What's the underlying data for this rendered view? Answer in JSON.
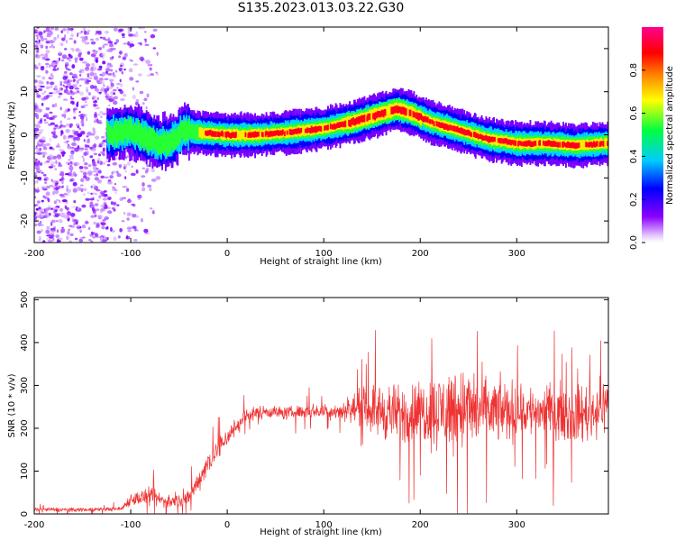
{
  "figure": {
    "title": "S135.2023.013.03.22.G30"
  },
  "chart_data": [
    {
      "type": "heatmap",
      "title": "S135.2023.013.03.22.G30",
      "xlabel": "Height of straight line (km)",
      "ylabel": "Frequency (Hz)",
      "xlim": [
        -200,
        395
      ],
      "ylim": [
        -25,
        25
      ],
      "x_ticks": [
        -200,
        -100,
        0,
        100,
        200,
        300
      ],
      "y_ticks": [
        -20,
        -10,
        0,
        10,
        20
      ],
      "grid": false,
      "colorbar": {
        "label": "Normalized spectral amplitude",
        "range": [
          0,
          1
        ],
        "ticks": [
          "0.0",
          "0.2",
          "0.4",
          "0.6",
          "0.8"
        ],
        "colors": [
          "#ffffff",
          "#7b00ff",
          "#0000ff",
          "#00d0ff",
          "#00ff00",
          "#ffff00",
          "#ff8000",
          "#ff0000",
          "#ff00a0"
        ]
      },
      "ridge": {
        "description_of_peak_frequency_vs_height": "peak frequency line",
        "x": [
          -120,
          -100,
          -80,
          -70,
          -55,
          -45,
          -30,
          0,
          30,
          60,
          100,
          130,
          160,
          175,
          190,
          210,
          240,
          270,
          300,
          330,
          360,
          390
        ],
        "y": [
          0,
          1,
          -1,
          -2,
          -1,
          1,
          0.5,
          0,
          0,
          0.5,
          1.5,
          3,
          5,
          6,
          5,
          3,
          1,
          -1,
          -2,
          -2,
          -2.5,
          -2
        ]
      }
    },
    {
      "type": "line",
      "xlabel": "Height of straight line (km)",
      "ylabel": "SNR (10 * v/v)",
      "xlim": [
        -200,
        395
      ],
      "ylim": [
        0,
        505
      ],
      "x_ticks": [
        -200,
        -100,
        0,
        100,
        200,
        300
      ],
      "y_ticks": [
        0,
        100,
        200,
        300,
        400,
        500
      ],
      "grid": false,
      "color": "#ee3333",
      "envelope": {
        "x": [
          -200,
          -150,
          -110,
          -100,
          -80,
          -60,
          -40,
          -20,
          0,
          20,
          40,
          60,
          80,
          100,
          120,
          140,
          160,
          180,
          200,
          220,
          240,
          260,
          280,
          300,
          320,
          340,
          360,
          380,
          395
        ],
        "mean": [
          10,
          10,
          12,
          35,
          40,
          28,
          35,
          120,
          180,
          230,
          240,
          235,
          240,
          240,
          240,
          250,
          240,
          230,
          240,
          240,
          250,
          240,
          240,
          240,
          240,
          240,
          230,
          240,
          260
        ],
        "spread": [
          8,
          8,
          8,
          25,
          35,
          25,
          30,
          50,
          40,
          30,
          25,
          25,
          25,
          30,
          35,
          70,
          110,
          110,
          120,
          150,
          170,
          140,
          120,
          110,
          100,
          100,
          110,
          110,
          100
        ]
      }
    }
  ]
}
